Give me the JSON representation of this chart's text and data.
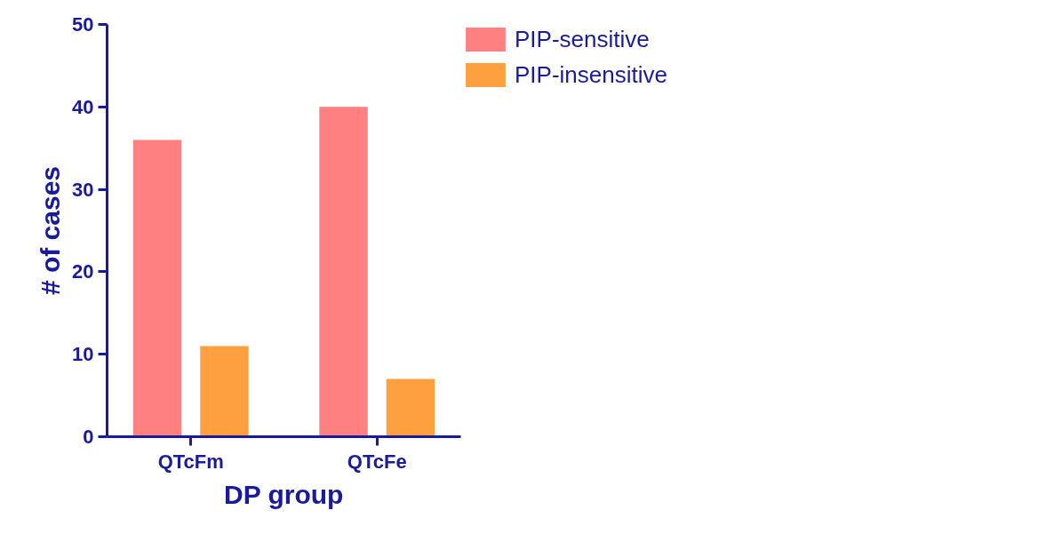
{
  "chart_data": {
    "type": "bar",
    "xlabel": "DP group",
    "ylabel": "# of cases",
    "categories": [
      "QTcFm",
      "QTcFe"
    ],
    "series": [
      {
        "name": "PIP-sensitive",
        "color": "#ff8080",
        "values": [
          36,
          40
        ]
      },
      {
        "name": "PIP-insensitive",
        "color": "#ffa040",
        "values": [
          11,
          7
        ]
      }
    ],
    "ylim": [
      0,
      50
    ],
    "yticks": [
      0,
      10,
      20,
      30,
      40,
      50
    ],
    "grid": false,
    "legend": "top right"
  }
}
